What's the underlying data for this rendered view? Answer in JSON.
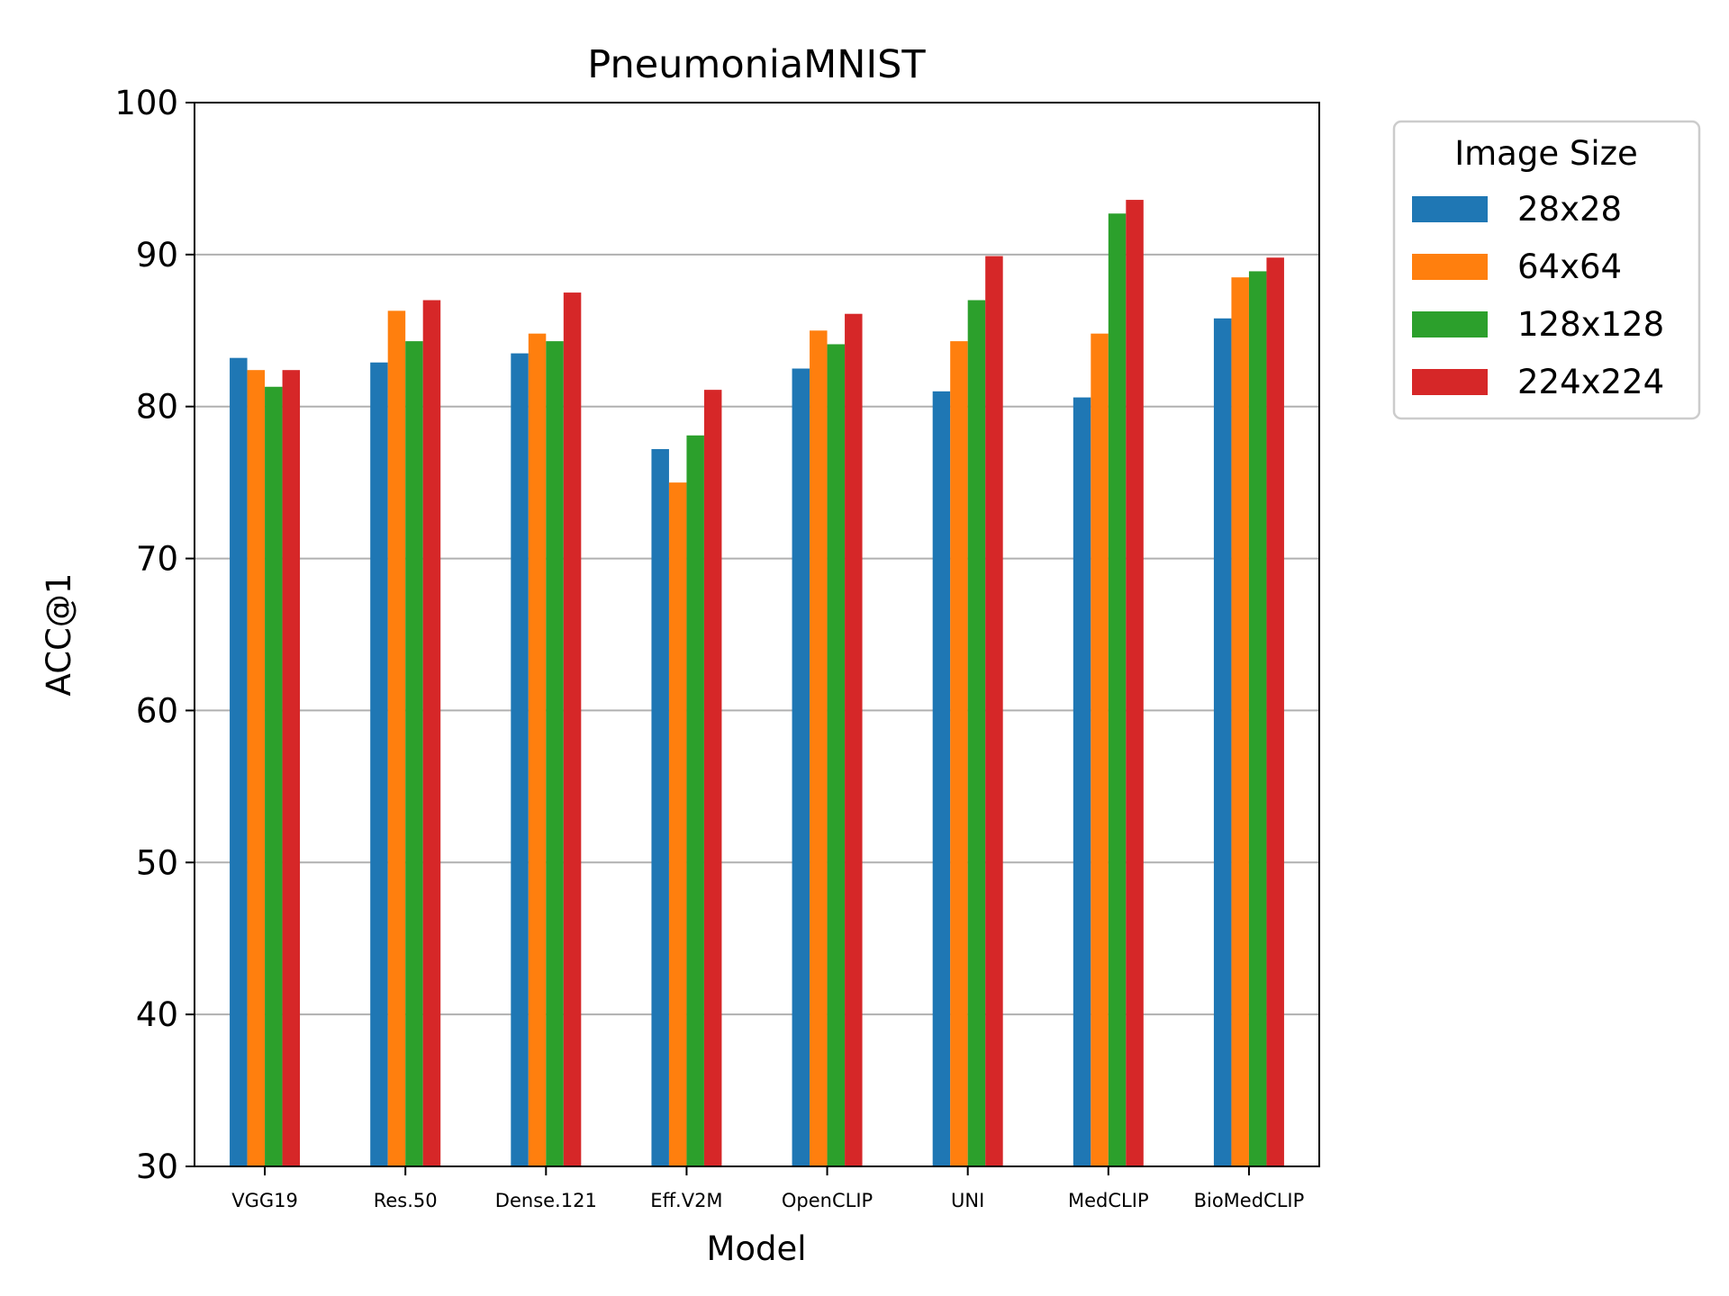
{
  "chart_data": {
    "type": "bar",
    "title": "PneumoniaMNIST",
    "xlabel": "Model",
    "ylabel": "ACC@1",
    "ylim": [
      30,
      100
    ],
    "yticks": [
      30,
      40,
      50,
      60,
      70,
      80,
      90,
      100
    ],
    "grid": "horizontal",
    "legend": {
      "title": "Image Size",
      "position": "outside-right"
    },
    "categories": [
      "VGG19",
      "Res.50",
      "Dense.121",
      "Eff.V2M",
      "OpenCLIP",
      "UNI",
      "MedCLIP",
      "BioMedCLIP"
    ],
    "series": [
      {
        "name": "28x28",
        "color": "#1f77b4",
        "values": [
          83.2,
          82.9,
          83.5,
          77.2,
          82.5,
          81.0,
          80.6,
          85.8
        ]
      },
      {
        "name": "64x64",
        "color": "#ff7f0e",
        "values": [
          82.4,
          86.3,
          84.8,
          75.0,
          85.0,
          84.3,
          84.8,
          88.5
        ]
      },
      {
        "name": "128x128",
        "color": "#2ca02c",
        "values": [
          81.3,
          84.3,
          84.3,
          78.1,
          84.1,
          87.0,
          92.7,
          88.9
        ]
      },
      {
        "name": "224x224",
        "color": "#d62728",
        "values": [
          82.4,
          87.0,
          87.5,
          81.1,
          86.1,
          89.9,
          93.6,
          89.8
        ]
      }
    ]
  }
}
